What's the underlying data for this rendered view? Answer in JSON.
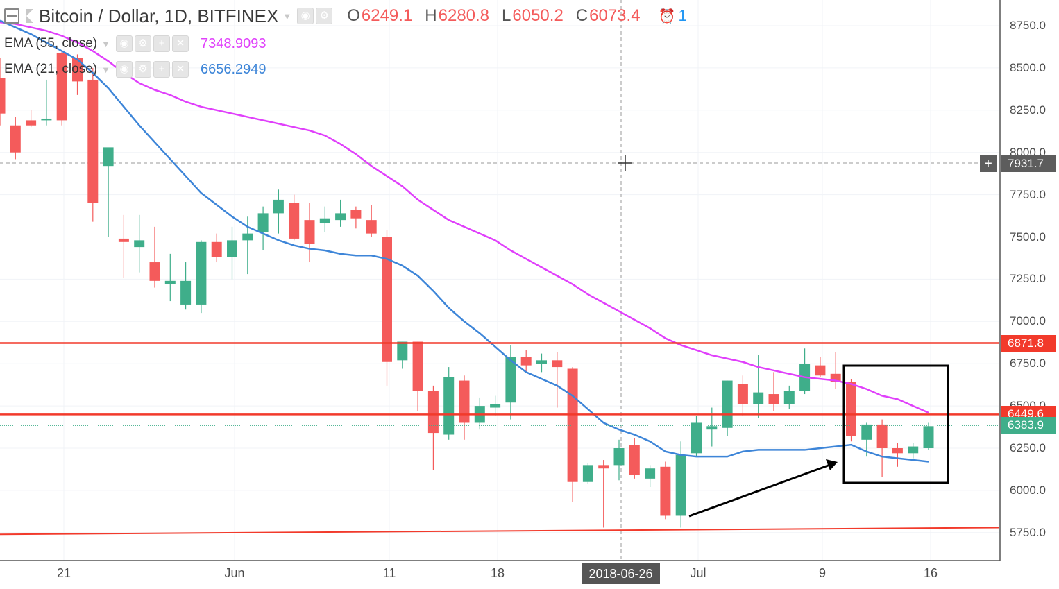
{
  "header": {
    "symbol": "Bitcoin / Dollar, 1D, BITFINEX",
    "ohlc": {
      "o_label": "O",
      "o": "6249.1",
      "h_label": "H",
      "h": "6280.8",
      "l_label": "L",
      "l": "6050.2",
      "c_label": "C",
      "c": "6073.4"
    },
    "alert_count": "1"
  },
  "indicators": [
    {
      "name": "EMA (55, close)",
      "value": "7348.9093",
      "color": "#e040fb"
    },
    {
      "name": "EMA (21, close)",
      "value": "6656.2949",
      "color": "#3d85d8"
    }
  ],
  "price_axis": {
    "ticks": [
      "8750.0",
      "8500.0",
      "8250.0",
      "8000.0",
      "7750.0",
      "7500.0",
      "7250.0",
      "7000.0",
      "6750.0",
      "6500.0",
      "6250.0",
      "6000.0",
      "5750.0"
    ],
    "badges": [
      {
        "label": "7931.7",
        "color": "#5d5d5d"
      },
      {
        "label": "6871.8",
        "color": "#f23a2b"
      },
      {
        "label": "6449.6",
        "color": "#f23a2b"
      },
      {
        "label": "6383.9",
        "color": "#3fae8a"
      }
    ]
  },
  "time_axis": {
    "ticks": [
      "21",
      "Jun",
      "11",
      "18",
      "Jul",
      "9",
      "16"
    ],
    "cursor_date": "2018-06-26"
  },
  "colors": {
    "up": "#3fae8a",
    "down": "#f45b5b",
    "hline": "#f23a2b",
    "ema55": "#e040fb",
    "ema21": "#3d85d8"
  },
  "chart_data": {
    "type": "candlestick",
    "title": "Bitcoin / Dollar, 1D, BITFINEX",
    "ylim": [
      5600,
      8900
    ],
    "candles": [
      [
        8440,
        8560,
        8230,
        8160
      ],
      [
        8160,
        8210,
        8000,
        7960
      ],
      [
        8190,
        8250,
        8160,
        8150
      ],
      [
        8190,
        8430,
        8200,
        8160
      ],
      [
        8590,
        8600,
        8190,
        8160
      ],
      [
        8560,
        8580,
        8420,
        8340
      ],
      [
        8430,
        8500,
        7700,
        7590
      ],
      [
        7920,
        7980,
        8030,
        7500
      ],
      [
        7490,
        7630,
        7470,
        7260
      ],
      [
        7440,
        7630,
        7480,
        7290
      ],
      [
        7350,
        7560,
        7240,
        7200
      ],
      [
        7220,
        7400,
        7240,
        7120
      ],
      [
        7100,
        7350,
        7240,
        7070
      ],
      [
        7100,
        7480,
        7470,
        7050
      ],
      [
        7470,
        7520,
        7380,
        7350
      ],
      [
        7380,
        7560,
        7480,
        7250
      ],
      [
        7480,
        7620,
        7520,
        7280
      ],
      [
        7530,
        7680,
        7640,
        7420
      ],
      [
        7640,
        7780,
        7720,
        7520
      ],
      [
        7700,
        7750,
        7490,
        7480
      ],
      [
        7600,
        7700,
        7460,
        7350
      ],
      [
        7580,
        7680,
        7610,
        7530
      ],
      [
        7600,
        7720,
        7640,
        7560
      ],
      [
        7660,
        7680,
        7610,
        7550
      ],
      [
        7600,
        7690,
        7520,
        7500
      ],
      [
        7500,
        7540,
        6760,
        6620
      ],
      [
        6770,
        6880,
        6880,
        6720
      ],
      [
        6880,
        6880,
        6590,
        6470
      ],
      [
        6590,
        6620,
        6340,
        6120
      ],
      [
        6330,
        6730,
        6670,
        6300
      ],
      [
        6650,
        6680,
        6400,
        6300
      ],
      [
        6400,
        6550,
        6500,
        6360
      ],
      [
        6490,
        6560,
        6510,
        6440
      ],
      [
        6520,
        6860,
        6790,
        6420
      ],
      [
        6790,
        6830,
        6740,
        6700
      ],
      [
        6750,
        6810,
        6770,
        6700
      ],
      [
        6770,
        6820,
        6730,
        6490
      ],
      [
        6720,
        6730,
        6050,
        5930
      ],
      [
        6050,
        6160,
        6150,
        6040
      ],
      [
        6150,
        6180,
        6130,
        5780
      ],
      [
        6150,
        6300,
        6250,
        6060
      ],
      [
        6270,
        6310,
        6090,
        6070
      ],
      [
        6070,
        6150,
        6130,
        6020
      ],
      [
        6140,
        6170,
        5850,
        5830
      ],
      [
        5850,
        6290,
        6210,
        5780
      ],
      [
        6220,
        6440,
        6400,
        6200
      ],
      [
        6360,
        6490,
        6380,
        6260
      ],
      [
        6370,
        6650,
        6650,
        6320
      ],
      [
        6630,
        6680,
        6510,
        6440
      ],
      [
        6510,
        6800,
        6580,
        6430
      ],
      [
        6570,
        6700,
        6510,
        6470
      ],
      [
        6510,
        6620,
        6590,
        6480
      ],
      [
        6590,
        6840,
        6750,
        6570
      ],
      [
        6740,
        6790,
        6680,
        6670
      ],
      [
        6690,
        6820,
        6640,
        6600
      ],
      [
        6640,
        6660,
        6320,
        6290
      ],
      [
        6300,
        6400,
        6390,
        6200
      ],
      [
        6390,
        6420,
        6250,
        6080
      ],
      [
        6250,
        6280,
        6220,
        6140
      ],
      [
        6220,
        6280,
        6260,
        6190
      ],
      [
        6250,
        6400,
        6380,
        6240
      ]
    ],
    "ema55": [
      8770,
      8760,
      8740,
      8720,
      8690,
      8650,
      8600,
      8540,
      8470,
      8410,
      8370,
      8340,
      8300,
      8270,
      8250,
      8230,
      8210,
      8190,
      8170,
      8150,
      8130,
      8100,
      8050,
      7990,
      7920,
      7860,
      7800,
      7720,
      7660,
      7600,
      7560,
      7520,
      7480,
      7420,
      7370,
      7320,
      7270,
      7220,
      7160,
      7110,
      7060,
      7010,
      6960,
      6900,
      6860,
      6830,
      6800,
      6780,
      6760,
      6730,
      6710,
      6690,
      6670,
      6660,
      6650,
      6630,
      6600,
      6560,
      6540,
      6500,
      6460
    ],
    "ema21": [
      8780,
      8740,
      8700,
      8650,
      8600,
      8550,
      8470,
      8380,
      8270,
      8160,
      8060,
      7960,
      7860,
      7760,
      7690,
      7620,
      7560,
      7520,
      7480,
      7450,
      7430,
      7420,
      7400,
      7390,
      7390,
      7370,
      7330,
      7270,
      7180,
      7080,
      7000,
      6930,
      6850,
      6770,
      6700,
      6660,
      6620,
      6560,
      6480,
      6400,
      6360,
      6330,
      6290,
      6230,
      6210,
      6200,
      6200,
      6200,
      6230,
      6240,
      6240,
      6240,
      6240,
      6250,
      6260,
      6270,
      6230,
      6200,
      6190,
      6180,
      6170
    ],
    "horizontal_lines": [
      6871.8,
      6449.6
    ],
    "support_line": [
      5740,
      5780
    ],
    "crosshair_price": 7931.7,
    "last_close": 6383.9,
    "annotations": [
      "rectangle around last 6 candles",
      "arrow pointing up-right to rectangle"
    ]
  }
}
